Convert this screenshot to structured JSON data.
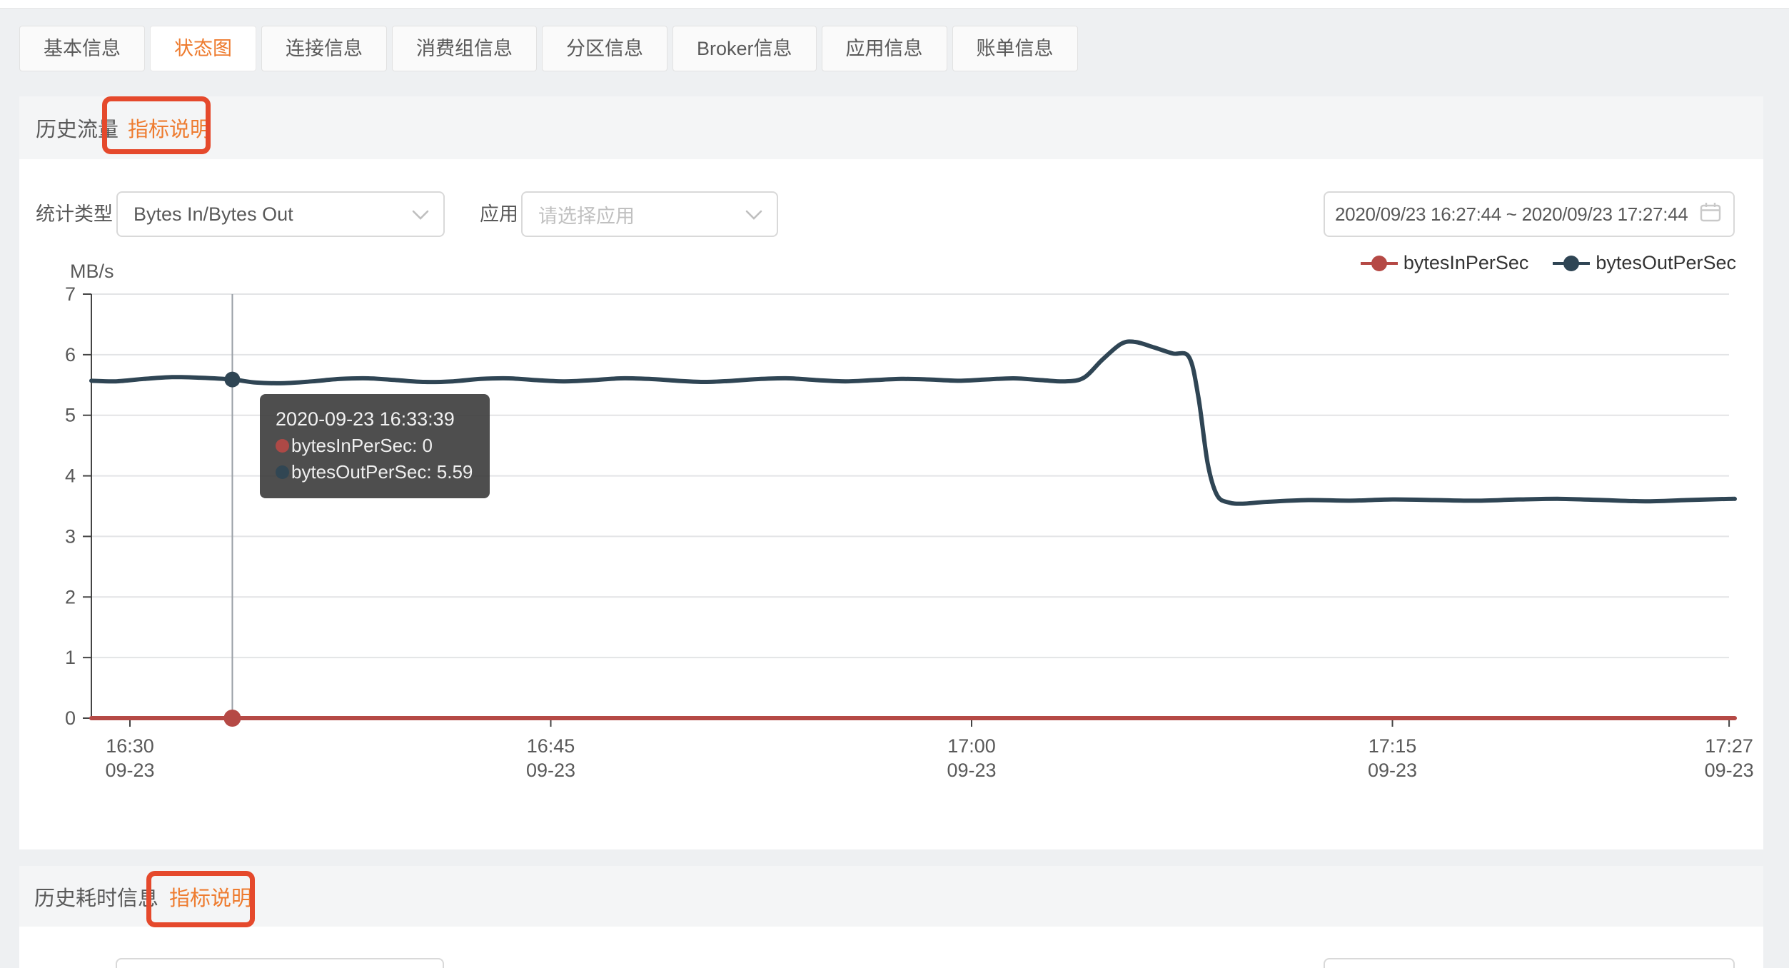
{
  "tabs": [
    {
      "name": "tab-basic-info",
      "label": "基本信息",
      "active": false
    },
    {
      "name": "tab-status-chart",
      "label": "状态图",
      "active": true
    },
    {
      "name": "tab-connection-info",
      "label": "连接信息",
      "active": false
    },
    {
      "name": "tab-consumer-group-info",
      "label": "消费组信息",
      "active": false
    },
    {
      "name": "tab-partition-info",
      "label": "分区信息",
      "active": false
    },
    {
      "name": "tab-broker-info",
      "label": "Broker信息",
      "active": false
    },
    {
      "name": "tab-app-info",
      "label": "应用信息",
      "active": false
    },
    {
      "name": "tab-billing-info",
      "label": "账单信息",
      "active": false
    }
  ],
  "section_traffic": {
    "title": "历史流量",
    "metric_link": "指标说明"
  },
  "section_latency": {
    "title": "历史耗时信息",
    "metric_link": "指标说明"
  },
  "filters": {
    "stat_type_label": "统计类型",
    "stat_type_value": "Bytes In/Bytes Out",
    "app_label": "应用",
    "app_placeholder": "请选择应用",
    "date_range": "2020/09/23 16:27:44 ~ 2020/09/23 17:27:44"
  },
  "colors": {
    "accent_orange": "#ee7c30",
    "annotation_red": "#e5492c",
    "series_in": "#b54945",
    "series_out": "#2f4554"
  },
  "legend": [
    {
      "name": "bytesInPerSec",
      "color": "#b54945"
    },
    {
      "name": "bytesOutPerSec",
      "color": "#2f4554"
    }
  ],
  "tooltip": {
    "time": "2020-09-23 16:33:39",
    "rows": [
      {
        "name": "bytesInPerSec",
        "value": "0",
        "color": "#b54945"
      },
      {
        "name": "bytesOutPerSec",
        "value": "5.59",
        "color": "#2f4554"
      }
    ]
  },
  "chart_data": {
    "type": "line",
    "title": "",
    "xlabel": "",
    "ylabel": "MB/s",
    "ylim": [
      0,
      7
    ],
    "y_ticks": [
      0,
      1,
      2,
      3,
      4,
      5,
      6,
      7
    ],
    "x_ticks": [
      {
        "time": "16:30",
        "date": "09-23"
      },
      {
        "time": "16:45",
        "date": "09-23"
      },
      {
        "time": "17:00",
        "date": "09-23"
      },
      {
        "time": "17:15",
        "date": "09-23"
      },
      {
        "time": "17:27",
        "date": "09-23"
      }
    ],
    "grid": true,
    "legend_position": "top-right",
    "highlight": {
      "time": "16:33:39",
      "bytesInPerSec": 0,
      "bytesOutPerSec": 5.59
    },
    "series": [
      {
        "name": "bytesInPerSec",
        "color": "#b54945",
        "unit": "MB/s",
        "points": [
          [
            "16:28:36",
            0
          ],
          [
            "17:27:37",
            0
          ]
        ]
      },
      {
        "name": "bytesOutPerSec",
        "color": "#2f4554",
        "unit": "MB/s",
        "points": [
          [
            "16:28:36",
            5.57
          ],
          [
            "16:29:30",
            5.56
          ],
          [
            "16:30:30",
            5.6
          ],
          [
            "16:31:30",
            5.63
          ],
          [
            "16:32:30",
            5.62
          ],
          [
            "16:33:39",
            5.59
          ],
          [
            "16:34:30",
            5.54
          ],
          [
            "16:35:30",
            5.53
          ],
          [
            "16:36:30",
            5.56
          ],
          [
            "16:37:30",
            5.6
          ],
          [
            "16:38:30",
            5.61
          ],
          [
            "16:39:30",
            5.58
          ],
          [
            "16:40:30",
            5.55
          ],
          [
            "16:41:30",
            5.56
          ],
          [
            "16:42:30",
            5.6
          ],
          [
            "16:43:30",
            5.61
          ],
          [
            "16:44:30",
            5.58
          ],
          [
            "16:45:30",
            5.56
          ],
          [
            "16:46:30",
            5.58
          ],
          [
            "16:47:30",
            5.61
          ],
          [
            "16:48:30",
            5.6
          ],
          [
            "16:49:30",
            5.57
          ],
          [
            "16:50:30",
            5.55
          ],
          [
            "16:51:30",
            5.57
          ],
          [
            "16:52:30",
            5.6
          ],
          [
            "16:53:30",
            5.61
          ],
          [
            "16:54:30",
            5.58
          ],
          [
            "16:55:30",
            5.56
          ],
          [
            "16:56:30",
            5.58
          ],
          [
            "16:57:30",
            5.6
          ],
          [
            "16:58:30",
            5.59
          ],
          [
            "16:59:30",
            5.57
          ],
          [
            "17:00:30",
            5.59
          ],
          [
            "17:01:30",
            5.61
          ],
          [
            "17:02:30",
            5.58
          ],
          [
            "17:03:20",
            5.56
          ],
          [
            "17:04:00",
            5.62
          ],
          [
            "17:04:40",
            5.92
          ],
          [
            "17:05:20",
            6.18
          ],
          [
            "17:05:50",
            6.21
          ],
          [
            "17:06:30",
            6.12
          ],
          [
            "17:07:10",
            6.02
          ],
          [
            "17:07:45",
            5.96
          ],
          [
            "17:08:05",
            5.3
          ],
          [
            "17:08:25",
            4.2
          ],
          [
            "17:08:45",
            3.68
          ],
          [
            "17:09:10",
            3.56
          ],
          [
            "17:09:40",
            3.54
          ],
          [
            "17:10:30",
            3.57
          ],
          [
            "17:12:00",
            3.6
          ],
          [
            "17:13:30",
            3.59
          ],
          [
            "17:15:00",
            3.61
          ],
          [
            "17:16:30",
            3.6
          ],
          [
            "17:18:00",
            3.59
          ],
          [
            "17:19:30",
            3.61
          ],
          [
            "17:21:00",
            3.62
          ],
          [
            "17:22:30",
            3.6
          ],
          [
            "17:24:00",
            3.58
          ],
          [
            "17:25:30",
            3.6
          ],
          [
            "17:27:00",
            3.62
          ],
          [
            "17:27:37",
            3.62
          ]
        ]
      }
    ]
  }
}
